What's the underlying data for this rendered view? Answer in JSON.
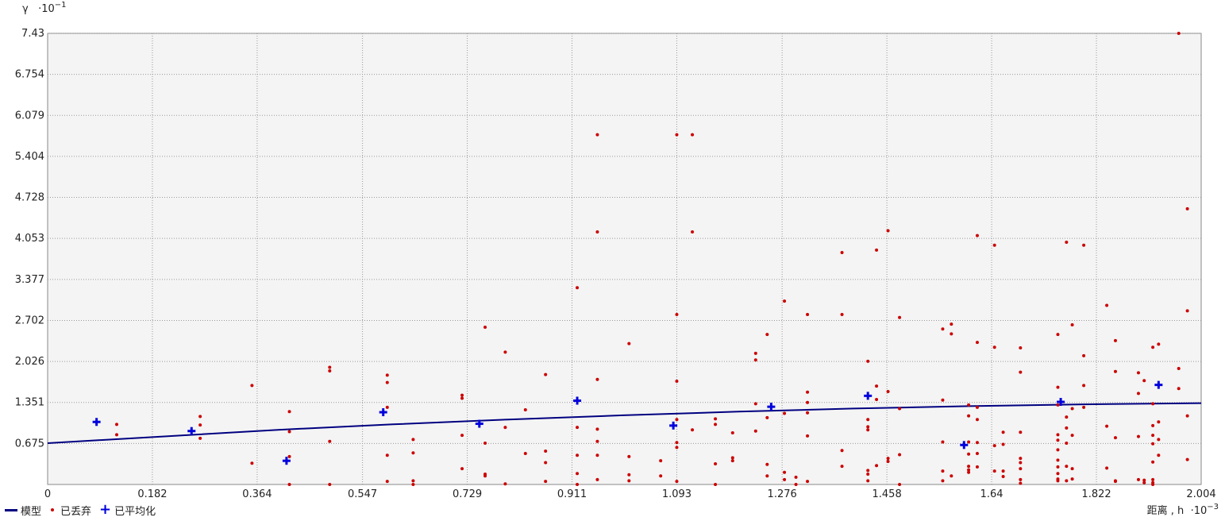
{
  "chart_data": {
    "type": "scatter",
    "xlim": [
      0,
      2.004
    ],
    "ylim": [
      0,
      7.43
    ],
    "x_ticks": [
      "0",
      "0.182",
      "0.364",
      "0.547",
      "0.729",
      "0.911",
      "1.093",
      "1.276",
      "1.458",
      "1.64",
      "1.822",
      "2.004"
    ],
    "y_ticks": [
      "0.675",
      "1.351",
      "2.026",
      "2.702",
      "3.377",
      "4.053",
      "4.728",
      "5.404",
      "6.079",
      "6.754",
      "7.43"
    ],
    "grid": true,
    "legend_position": "bottom-left",
    "y_axis_label": "γ",
    "y_axis_multiplier": "·10",
    "y_axis_exponent": "−1",
    "x_axis_label": "距离 , h",
    "x_axis_multiplier": "·10",
    "x_axis_exponent": "−3",
    "colors": {
      "model": "#000080",
      "discarded": "#cc0000",
      "averaged": "#0000dd",
      "plot_bg": "#f4f4f4",
      "grid": "#999999"
    },
    "series": [
      {
        "name": "模型",
        "kind": "line",
        "points": [
          [
            0,
            0.68
          ],
          [
            0.2,
            0.79
          ],
          [
            0.4,
            0.9
          ],
          [
            0.6,
            0.99
          ],
          [
            0.8,
            1.07
          ],
          [
            1.0,
            1.14
          ],
          [
            1.2,
            1.2
          ],
          [
            1.4,
            1.25
          ],
          [
            1.6,
            1.29
          ],
          [
            1.8,
            1.32
          ],
          [
            2.004,
            1.34
          ]
        ]
      },
      {
        "name": "已丢弃",
        "kind": "dots",
        "points": [
          [
            0.12,
            0.99
          ],
          [
            0.12,
            0.82
          ],
          [
            0.265,
            1.12
          ],
          [
            0.265,
            0.98
          ],
          [
            0.265,
            0.76
          ],
          [
            0.355,
            1.63
          ],
          [
            0.355,
            0.35
          ],
          [
            0.42,
            1.2
          ],
          [
            0.42,
            0.87
          ],
          [
            0.42,
            0.46
          ],
          [
            0.42,
            0.0
          ],
          [
            0.49,
            1.93
          ],
          [
            0.49,
            1.87
          ],
          [
            0.49,
            0.71
          ],
          [
            0.49,
            0.0
          ],
          [
            0.59,
            1.8
          ],
          [
            0.59,
            1.68
          ],
          [
            0.59,
            1.27
          ],
          [
            0.59,
            0.48
          ],
          [
            0.59,
            0.05
          ],
          [
            0.635,
            0.74
          ],
          [
            0.635,
            0.52
          ],
          [
            0.635,
            0.06
          ],
          [
            0.635,
            0.0
          ],
          [
            0.72,
            1.47
          ],
          [
            0.72,
            1.42
          ],
          [
            0.72,
            0.81
          ],
          [
            0.72,
            0.26
          ],
          [
            0.76,
            2.59
          ],
          [
            0.76,
            0.68
          ],
          [
            0.76,
            0.17
          ],
          [
            0.76,
            0.14
          ],
          [
            0.795,
            2.18
          ],
          [
            0.795,
            0.94
          ],
          [
            0.795,
            0.01
          ],
          [
            0.83,
            1.23
          ],
          [
            0.83,
            0.51
          ],
          [
            0.865,
            1.81
          ],
          [
            0.865,
            0.55
          ],
          [
            0.865,
            0.36
          ],
          [
            0.865,
            0.05
          ],
          [
            0.92,
            3.24
          ],
          [
            0.92,
            0.94
          ],
          [
            0.92,
            0.48
          ],
          [
            0.92,
            0.18
          ],
          [
            0.92,
            0.0
          ],
          [
            0.955,
            5.76
          ],
          [
            0.955,
            4.16
          ],
          [
            0.955,
            1.73
          ],
          [
            0.955,
            0.91
          ],
          [
            0.955,
            0.71
          ],
          [
            0.955,
            0.48
          ],
          [
            0.955,
            0.08
          ],
          [
            1.01,
            2.32
          ],
          [
            1.01,
            0.46
          ],
          [
            1.01,
            0.16
          ],
          [
            1.01,
            0.06
          ],
          [
            1.065,
            0.39
          ],
          [
            1.065,
            0.14
          ],
          [
            1.093,
            5.76
          ],
          [
            1.093,
            2.8
          ],
          [
            1.093,
            1.7
          ],
          [
            1.093,
            1.07
          ],
          [
            1.093,
            0.69
          ],
          [
            1.093,
            0.61
          ],
          [
            1.093,
            0.05
          ],
          [
            1.12,
            5.76
          ],
          [
            1.12,
            4.16
          ],
          [
            1.12,
            0.9
          ],
          [
            1.16,
            1.08
          ],
          [
            1.16,
            0.99
          ],
          [
            1.16,
            0.34
          ],
          [
            1.16,
            0.0
          ],
          [
            1.19,
            0.85
          ],
          [
            1.19,
            0.44
          ],
          [
            1.19,
            0.39
          ],
          [
            1.23,
            2.16
          ],
          [
            1.23,
            2.05
          ],
          [
            1.23,
            1.33
          ],
          [
            1.23,
            0.88
          ],
          [
            1.25,
            2.47
          ],
          [
            1.25,
            1.1
          ],
          [
            1.25,
            0.33
          ],
          [
            1.25,
            0.14
          ],
          [
            1.28,
            3.02
          ],
          [
            1.28,
            1.17
          ],
          [
            1.28,
            0.2
          ],
          [
            1.28,
            0.08
          ],
          [
            1.3,
            0.12
          ],
          [
            1.3,
            0.0
          ],
          [
            1.32,
            2.8
          ],
          [
            1.32,
            1.52
          ],
          [
            1.32,
            1.35
          ],
          [
            1.32,
            1.18
          ],
          [
            1.32,
            0.8
          ],
          [
            1.32,
            0.05
          ],
          [
            1.38,
            3.82
          ],
          [
            1.38,
            2.8
          ],
          [
            1.38,
            0.56
          ],
          [
            1.38,
            0.3
          ],
          [
            1.425,
            2.03
          ],
          [
            1.425,
            1.07
          ],
          [
            1.425,
            0.95
          ],
          [
            1.425,
            0.9
          ],
          [
            1.425,
            0.23
          ],
          [
            1.425,
            0.17
          ],
          [
            1.425,
            0.06
          ],
          [
            1.44,
            3.86
          ],
          [
            1.44,
            1.62
          ],
          [
            1.44,
            1.4
          ],
          [
            1.44,
            0.31
          ],
          [
            1.46,
            4.18
          ],
          [
            1.46,
            1.53
          ],
          [
            1.46,
            0.43
          ],
          [
            1.46,
            0.38
          ],
          [
            1.48,
            2.75
          ],
          [
            1.48,
            1.25
          ],
          [
            1.48,
            0.49
          ],
          [
            1.48,
            0.0
          ],
          [
            1.555,
            2.56
          ],
          [
            1.555,
            1.39
          ],
          [
            1.555,
            0.7
          ],
          [
            1.555,
            0.22
          ],
          [
            1.555,
            0.06
          ],
          [
            1.57,
            2.64
          ],
          [
            1.57,
            2.48
          ],
          [
            1.57,
            0.14
          ],
          [
            1.6,
            1.31
          ],
          [
            1.6,
            1.13
          ],
          [
            1.6,
            0.7
          ],
          [
            1.6,
            0.5
          ],
          [
            1.6,
            0.24
          ],
          [
            1.6,
            0.2
          ],
          [
            1.6,
            0.3
          ],
          [
            1.615,
            4.1
          ],
          [
            1.615,
            2.34
          ],
          [
            1.615,
            1.27
          ],
          [
            1.615,
            1.07
          ],
          [
            1.615,
            0.69
          ],
          [
            1.615,
            0.51
          ],
          [
            1.615,
            0.29
          ],
          [
            1.645,
            3.94
          ],
          [
            1.645,
            2.26
          ],
          [
            1.645,
            0.64
          ],
          [
            1.645,
            0.22
          ],
          [
            1.66,
            0.86
          ],
          [
            1.66,
            0.66
          ],
          [
            1.66,
            0.22
          ],
          [
            1.66,
            0.13
          ],
          [
            1.69,
            2.25
          ],
          [
            1.69,
            1.85
          ],
          [
            1.69,
            0.86
          ],
          [
            1.69,
            0.43
          ],
          [
            1.69,
            0.36
          ],
          [
            1.69,
            0.26
          ],
          [
            1.69,
            0.08
          ],
          [
            1.69,
            0.02
          ],
          [
            1.755,
            2.47
          ],
          [
            1.755,
            1.6
          ],
          [
            1.755,
            1.31
          ],
          [
            1.755,
            0.82
          ],
          [
            1.755,
            0.73
          ],
          [
            1.755,
            0.57
          ],
          [
            1.755,
            0.4
          ],
          [
            1.755,
            0.29
          ],
          [
            1.755,
            0.18
          ],
          [
            1.755,
            0.09
          ],
          [
            1.755,
            0.06
          ],
          [
            1.77,
            3.99
          ],
          [
            1.77,
            1.11
          ],
          [
            1.77,
            0.93
          ],
          [
            1.77,
            0.68
          ],
          [
            1.77,
            0.3
          ],
          [
            1.77,
            0.06
          ],
          [
            1.78,
            2.63
          ],
          [
            1.78,
            1.25
          ],
          [
            1.78,
            0.81
          ],
          [
            1.78,
            0.26
          ],
          [
            1.78,
            0.09
          ],
          [
            1.8,
            3.94
          ],
          [
            1.8,
            2.12
          ],
          [
            1.8,
            1.63
          ],
          [
            1.8,
            1.27
          ],
          [
            1.84,
            2.95
          ],
          [
            1.84,
            0.96
          ],
          [
            1.84,
            0.27
          ],
          [
            1.855,
            2.37
          ],
          [
            1.855,
            1.86
          ],
          [
            1.855,
            0.77
          ],
          [
            1.855,
            0.06
          ],
          [
            1.855,
            0.05
          ],
          [
            1.895,
            1.84
          ],
          [
            1.895,
            1.5
          ],
          [
            1.895,
            0.79
          ],
          [
            1.895,
            0.08
          ],
          [
            1.905,
            0.07
          ],
          [
            1.905,
            0.03
          ],
          [
            1.905,
            1.71
          ],
          [
            1.92,
            2.26
          ],
          [
            1.92,
            1.33
          ],
          [
            1.92,
            0.97
          ],
          [
            1.92,
            0.81
          ],
          [
            1.92,
            0.67
          ],
          [
            1.92,
            0.37
          ],
          [
            1.92,
            0.08
          ],
          [
            1.92,
            0.03
          ],
          [
            1.92,
            0.0
          ],
          [
            1.93,
            2.31
          ],
          [
            1.93,
            1.03
          ],
          [
            1.93,
            0.74
          ],
          [
            1.93,
            0.48
          ],
          [
            1.965,
            7.43
          ],
          [
            1.965,
            1.91
          ],
          [
            1.965,
            1.58
          ],
          [
            1.98,
            4.54
          ],
          [
            1.98,
            2.86
          ],
          [
            1.98,
            1.13
          ],
          [
            1.98,
            0.41
          ]
        ]
      },
      {
        "name": "已平均化",
        "kind": "plus",
        "points": [
          [
            0.085,
            1.03
          ],
          [
            0.25,
            0.88
          ],
          [
            0.415,
            0.39
          ],
          [
            0.583,
            1.19
          ],
          [
            0.75,
            1.0
          ],
          [
            0.92,
            1.38
          ],
          [
            1.087,
            0.97
          ],
          [
            1.257,
            1.28
          ],
          [
            1.425,
            1.46
          ],
          [
            1.592,
            0.65
          ],
          [
            1.76,
            1.36
          ],
          [
            1.93,
            1.64
          ]
        ]
      }
    ]
  }
}
